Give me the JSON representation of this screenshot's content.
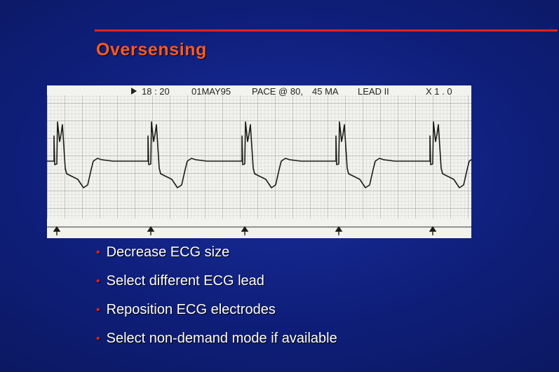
{
  "slide": {
    "title": "Oversensing",
    "accent_color": "#e0241c",
    "title_color": "#ff5a1e"
  },
  "ecg_strip": {
    "header": {
      "time": "18 : 20",
      "date": "01MAY95",
      "pace": "PACE @ 80,",
      "current": "45 MA",
      "lead": "LEAD II",
      "gain": "X 1 . 0"
    },
    "pacing_marker_count": 5
  },
  "bullets": [
    "Decrease ECG size",
    "Select different ECG lead",
    "Reposition ECG electrodes",
    "Select non-demand mode if available"
  ]
}
